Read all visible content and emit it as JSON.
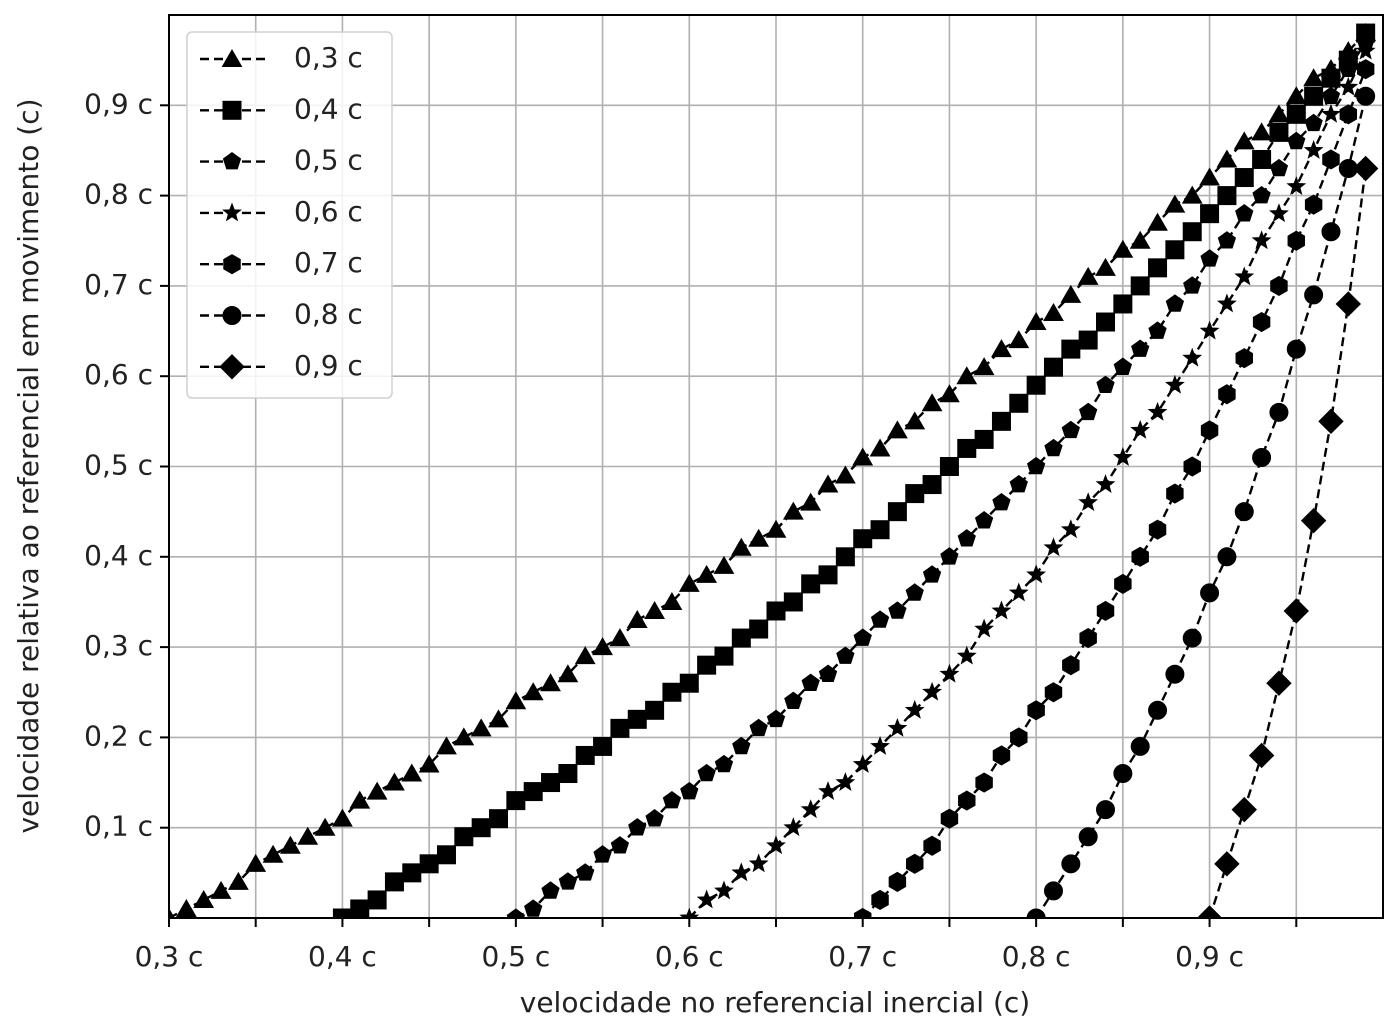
{
  "chart_data": {
    "type": "line",
    "xlabel": "velocidade no referencial inercial (c)",
    "ylabel": "velocidade relativa ao referencial em movimento (c)",
    "xlim": [
      0.3,
      1.0
    ],
    "ylim": [
      0,
      1.0
    ],
    "xticks": [
      {
        "value": 0.3,
        "label": "0,3 c"
      },
      {
        "value": 0.4,
        "label": "0,4 c"
      },
      {
        "value": 0.5,
        "label": "0,5 c"
      },
      {
        "value": 0.6,
        "label": "0,6 c"
      },
      {
        "value": 0.7,
        "label": "0,7 c"
      },
      {
        "value": 0.8,
        "label": "0,8 c"
      },
      {
        "value": 0.9,
        "label": "0,9 c"
      }
    ],
    "xminor_ticks": [
      0.35,
      0.45,
      0.55,
      0.65,
      0.75,
      0.85,
      0.95
    ],
    "yticks": [
      {
        "value": 0.1,
        "label": "0,1 c"
      },
      {
        "value": 0.2,
        "label": "0,2 c"
      },
      {
        "value": 0.3,
        "label": "0,3 c"
      },
      {
        "value": 0.4,
        "label": "0,4 c"
      },
      {
        "value": 0.5,
        "label": "0,5 c"
      },
      {
        "value": 0.6,
        "label": "0,6 c"
      },
      {
        "value": 0.7,
        "label": "0,7 c"
      },
      {
        "value": 0.8,
        "label": "0,8 c"
      },
      {
        "value": 0.9,
        "label": "0,9 c"
      }
    ],
    "grid": true,
    "legend": "upper left",
    "line_style": "dashed",
    "x": [
      0.3,
      0.31,
      0.32,
      0.33,
      0.34,
      0.35,
      0.36,
      0.37,
      0.38,
      0.39,
      0.4,
      0.41,
      0.42,
      0.43,
      0.44,
      0.45,
      0.46,
      0.47,
      0.48,
      0.49,
      0.5,
      0.51,
      0.52,
      0.53,
      0.54,
      0.55,
      0.56,
      0.57,
      0.58,
      0.59,
      0.6,
      0.61,
      0.62,
      0.63,
      0.64,
      0.65,
      0.66,
      0.67,
      0.68,
      0.69,
      0.7,
      0.71,
      0.72,
      0.73,
      0.74,
      0.75,
      0.76,
      0.77,
      0.78,
      0.79,
      0.8,
      0.81,
      0.82,
      0.83,
      0.84,
      0.85,
      0.86,
      0.87,
      0.88,
      0.89,
      0.9,
      0.91,
      0.92,
      0.93,
      0.94,
      0.95,
      0.96,
      0.97,
      0.98,
      0.99
    ],
    "series": [
      {
        "name": "0,3 c",
        "color": "#000000",
        "marker": "triangle",
        "values": [
          0,
          0.01,
          0.02,
          0.03,
          0.04,
          0.06,
          0.07,
          0.08,
          0.09,
          0.1,
          0.11,
          0.13,
          0.14,
          0.15,
          0.16,
          0.17,
          0.19,
          0.2,
          0.21,
          0.22,
          0.24,
          0.25,
          0.26,
          0.27,
          0.29,
          0.3,
          0.31,
          0.33,
          0.34,
          0.35,
          0.37,
          0.38,
          0.39,
          0.41,
          0.42,
          0.43,
          0.45,
          0.46,
          0.48,
          0.49,
          0.51,
          0.52,
          0.54,
          0.55,
          0.57,
          0.58,
          0.6,
          0.61,
          0.63,
          0.64,
          0.66,
          0.67,
          0.69,
          0.71,
          0.72,
          0.74,
          0.75,
          0.77,
          0.79,
          0.8,
          0.82,
          0.84,
          0.86,
          0.87,
          0.89,
          0.91,
          0.93,
          0.94,
          0.96,
          0.98
        ]
      },
      {
        "name": "0,4 c",
        "color": "#000000",
        "marker": "square",
        "values": [
          null,
          null,
          null,
          null,
          null,
          null,
          null,
          null,
          null,
          null,
          0,
          0.01,
          0.02,
          0.04,
          0.05,
          0.06,
          0.07,
          0.09,
          0.1,
          0.11,
          0.13,
          0.14,
          0.15,
          0.16,
          0.18,
          0.19,
          0.21,
          0.22,
          0.23,
          0.25,
          0.26,
          0.28,
          0.29,
          0.31,
          0.32,
          0.34,
          0.35,
          0.37,
          0.38,
          0.4,
          0.42,
          0.43,
          0.45,
          0.47,
          0.48,
          0.5,
          0.52,
          0.53,
          0.55,
          0.57,
          0.59,
          0.61,
          0.63,
          0.64,
          0.66,
          0.68,
          0.7,
          0.72,
          0.74,
          0.76,
          0.78,
          0.8,
          0.82,
          0.84,
          0.87,
          0.89,
          0.91,
          0.93,
          0.95,
          0.98
        ]
      },
      {
        "name": "0,5 c",
        "color": "#000000",
        "marker": "pentagon",
        "values": [
          null,
          null,
          null,
          null,
          null,
          null,
          null,
          null,
          null,
          null,
          null,
          null,
          null,
          null,
          null,
          null,
          null,
          null,
          null,
          null,
          0,
          0.01,
          0.03,
          0.04,
          0.05,
          0.07,
          0.08,
          0.1,
          0.11,
          0.13,
          0.14,
          0.16,
          0.17,
          0.19,
          0.21,
          0.22,
          0.24,
          0.26,
          0.27,
          0.29,
          0.31,
          0.33,
          0.34,
          0.36,
          0.38,
          0.4,
          0.42,
          0.44,
          0.46,
          0.48,
          0.5,
          0.52,
          0.54,
          0.56,
          0.59,
          0.61,
          0.63,
          0.65,
          0.68,
          0.7,
          0.73,
          0.75,
          0.78,
          0.8,
          0.83,
          0.86,
          0.88,
          0.91,
          0.94,
          0.97
        ]
      },
      {
        "name": "0,6 c",
        "color": "#000000",
        "marker": "star",
        "values": [
          null,
          null,
          null,
          null,
          null,
          null,
          null,
          null,
          null,
          null,
          null,
          null,
          null,
          null,
          null,
          null,
          null,
          null,
          null,
          null,
          null,
          null,
          null,
          null,
          null,
          null,
          null,
          null,
          null,
          null,
          0,
          0.02,
          0.03,
          0.05,
          0.06,
          0.08,
          0.1,
          0.12,
          0.14,
          0.15,
          0.17,
          0.19,
          0.21,
          0.23,
          0.25,
          0.27,
          0.29,
          0.32,
          0.34,
          0.36,
          0.38,
          0.41,
          0.43,
          0.46,
          0.48,
          0.51,
          0.54,
          0.56,
          0.59,
          0.62,
          0.65,
          0.68,
          0.71,
          0.75,
          0.78,
          0.81,
          0.85,
          0.89,
          0.92,
          0.96
        ]
      },
      {
        "name": "0,7 c",
        "color": "#000000",
        "marker": "hexagon",
        "values": [
          null,
          null,
          null,
          null,
          null,
          null,
          null,
          null,
          null,
          null,
          null,
          null,
          null,
          null,
          null,
          null,
          null,
          null,
          null,
          null,
          null,
          null,
          null,
          null,
          null,
          null,
          null,
          null,
          null,
          null,
          null,
          null,
          null,
          null,
          null,
          null,
          null,
          null,
          null,
          null,
          0,
          0.02,
          0.04,
          0.06,
          0.08,
          0.11,
          0.13,
          0.15,
          0.18,
          0.2,
          0.23,
          0.25,
          0.28,
          0.31,
          0.34,
          0.37,
          0.4,
          0.43,
          0.47,
          0.5,
          0.54,
          0.58,
          0.62,
          0.66,
          0.7,
          0.75,
          0.79,
          0.84,
          0.89,
          0.94
        ]
      },
      {
        "name": "0,8 c",
        "color": "#000000",
        "marker": "circle",
        "values": [
          null,
          null,
          null,
          null,
          null,
          null,
          null,
          null,
          null,
          null,
          null,
          null,
          null,
          null,
          null,
          null,
          null,
          null,
          null,
          null,
          null,
          null,
          null,
          null,
          null,
          null,
          null,
          null,
          null,
          null,
          null,
          null,
          null,
          null,
          null,
          null,
          null,
          null,
          null,
          null,
          null,
          null,
          null,
          null,
          null,
          null,
          null,
          null,
          null,
          null,
          0,
          0.03,
          0.06,
          0.09,
          0.12,
          0.16,
          0.19,
          0.23,
          0.27,
          0.31,
          0.36,
          0.4,
          0.45,
          0.51,
          0.56,
          0.63,
          0.69,
          0.76,
          0.83,
          0.91
        ]
      },
      {
        "name": "0,9 c",
        "color": "#000000",
        "marker": "diamond",
        "values": [
          null,
          null,
          null,
          null,
          null,
          null,
          null,
          null,
          null,
          null,
          null,
          null,
          null,
          null,
          null,
          null,
          null,
          null,
          null,
          null,
          null,
          null,
          null,
          null,
          null,
          null,
          null,
          null,
          null,
          null,
          null,
          null,
          null,
          null,
          null,
          null,
          null,
          null,
          null,
          null,
          null,
          null,
          null,
          null,
          null,
          null,
          null,
          null,
          null,
          null,
          null,
          null,
          null,
          null,
          null,
          null,
          null,
          null,
          null,
          null,
          0,
          0.06,
          0.12,
          0.18,
          0.26,
          0.34,
          0.44,
          0.55,
          0.68,
          0.83
        ]
      }
    ]
  }
}
